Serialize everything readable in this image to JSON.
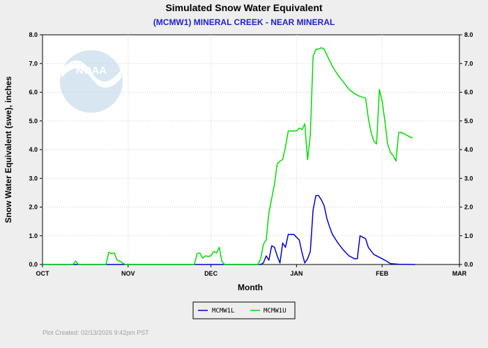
{
  "chart_data": {
    "type": "line",
    "title": "Simulated Snow Water Equivalent",
    "subtitle": "(MCMW1) MINERAL CREEK - NEAR MINERAL",
    "xlabel": "Month",
    "ylabel": "Snow Water Equivalent (swe),  inches",
    "ylim": [
      0,
      8
    ],
    "xlim": [
      "2025-10-01",
      "2026-03-01"
    ],
    "yticks": [
      "0.0",
      "1.0",
      "2.0",
      "3.0",
      "4.0",
      "5.0",
      "6.0",
      "7.0",
      "8.0"
    ],
    "xticks": [
      {
        "date": "2025-10-01",
        "label": "OCT"
      },
      {
        "date": "2025-11-01",
        "label": "NOV"
      },
      {
        "date": "2025-12-01",
        "label": "DEC"
      },
      {
        "date": "2026-01-01",
        "label": "JAN"
      },
      {
        "date": "2026-02-01",
        "label": "FEB"
      },
      {
        "date": "2026-03-01",
        "label": "MAR"
      }
    ],
    "grid": true,
    "legend_position": "bottom-center",
    "series": [
      {
        "name": "MCMW1L",
        "color": "#0000cc",
        "points": [
          [
            "2025-10-01",
            0.0
          ],
          [
            "2025-12-19",
            0.0
          ],
          [
            "2025-12-20",
            0.05
          ],
          [
            "2025-12-21",
            0.3
          ],
          [
            "2025-12-22",
            0.15
          ],
          [
            "2025-12-23",
            0.65
          ],
          [
            "2025-12-24",
            0.6
          ],
          [
            "2025-12-25",
            0.3
          ],
          [
            "2025-12-26",
            0.05
          ],
          [
            "2025-12-27",
            0.75
          ],
          [
            "2025-12-28",
            0.6
          ],
          [
            "2025-12-29",
            1.05
          ],
          [
            "2025-12-30",
            1.05
          ],
          [
            "2025-12-31",
            1.05
          ],
          [
            "2026-01-01",
            0.95
          ],
          [
            "2026-01-02",
            0.85
          ],
          [
            "2026-01-03",
            0.4
          ],
          [
            "2026-01-04",
            0.05
          ],
          [
            "2026-01-05",
            0.2
          ],
          [
            "2026-01-06",
            0.45
          ],
          [
            "2026-01-07",
            1.9
          ],
          [
            "2026-01-08",
            2.4
          ],
          [
            "2026-01-09",
            2.4
          ],
          [
            "2026-01-10",
            2.25
          ],
          [
            "2026-01-11",
            2.05
          ],
          [
            "2026-01-12",
            1.6
          ],
          [
            "2026-01-13",
            1.3
          ],
          [
            "2026-01-14",
            1.05
          ],
          [
            "2026-01-16",
            0.75
          ],
          [
            "2026-01-18",
            0.5
          ],
          [
            "2026-01-20",
            0.3
          ],
          [
            "2026-01-22",
            0.2
          ],
          [
            "2026-01-23",
            0.2
          ],
          [
            "2026-01-24",
            1.0
          ],
          [
            "2026-01-26",
            0.9
          ],
          [
            "2026-01-27",
            0.6
          ],
          [
            "2026-01-29",
            0.35
          ],
          [
            "2026-01-31",
            0.25
          ],
          [
            "2026-02-02",
            0.15
          ],
          [
            "2026-02-04",
            0.03
          ],
          [
            "2026-02-07",
            0.01
          ],
          [
            "2026-02-13",
            0.0
          ]
        ]
      },
      {
        "name": "MCMW1U",
        "color": "#00dd00",
        "points": [
          [
            "2025-10-01",
            0.0
          ],
          [
            "2025-10-12",
            0.0
          ],
          [
            "2025-10-13",
            0.12
          ],
          [
            "2025-10-14",
            0.0
          ],
          [
            "2025-10-24",
            0.0
          ],
          [
            "2025-10-25",
            0.42
          ],
          [
            "2025-10-26",
            0.38
          ],
          [
            "2025-10-27",
            0.4
          ],
          [
            "2025-10-28",
            0.15
          ],
          [
            "2025-10-29",
            0.12
          ],
          [
            "2025-10-30",
            0.05
          ],
          [
            "2025-10-31",
            0.0
          ],
          [
            "2025-11-25",
            0.0
          ],
          [
            "2025-11-26",
            0.38
          ],
          [
            "2025-11-27",
            0.4
          ],
          [
            "2025-11-28",
            0.22
          ],
          [
            "2025-11-29",
            0.3
          ],
          [
            "2025-11-30",
            0.28
          ],
          [
            "2025-12-01",
            0.3
          ],
          [
            "2025-12-02",
            0.45
          ],
          [
            "2025-12-03",
            0.4
          ],
          [
            "2025-12-04",
            0.6
          ],
          [
            "2025-12-05",
            0.1
          ],
          [
            "2025-12-06",
            0.0
          ],
          [
            "2025-12-18",
            0.0
          ],
          [
            "2025-12-19",
            0.2
          ],
          [
            "2025-12-20",
            0.7
          ],
          [
            "2025-12-21",
            0.85
          ],
          [
            "2025-12-22",
            1.8
          ],
          [
            "2025-12-23",
            2.3
          ],
          [
            "2025-12-24",
            2.8
          ],
          [
            "2025-12-25",
            3.5
          ],
          [
            "2025-12-26",
            3.6
          ],
          [
            "2025-12-27",
            3.65
          ],
          [
            "2025-12-28",
            4.1
          ],
          [
            "2025-12-29",
            4.65
          ],
          [
            "2025-12-30",
            4.65
          ],
          [
            "2026-01-01",
            4.65
          ],
          [
            "2026-01-02",
            4.75
          ],
          [
            "2026-01-03",
            4.7
          ],
          [
            "2026-01-04",
            4.9
          ],
          [
            "2026-01-05",
            3.65
          ],
          [
            "2026-01-06",
            4.5
          ],
          [
            "2026-01-07",
            7.25
          ],
          [
            "2026-01-08",
            7.5
          ],
          [
            "2026-01-09",
            7.5
          ],
          [
            "2026-01-10",
            7.55
          ],
          [
            "2026-01-11",
            7.5
          ],
          [
            "2026-01-12",
            7.3
          ],
          [
            "2026-01-14",
            6.9
          ],
          [
            "2026-01-16",
            6.6
          ],
          [
            "2026-01-18",
            6.35
          ],
          [
            "2026-01-20",
            6.1
          ],
          [
            "2026-01-22",
            5.95
          ],
          [
            "2026-01-24",
            5.85
          ],
          [
            "2026-01-26",
            5.8
          ],
          [
            "2026-01-27",
            5.1
          ],
          [
            "2026-01-28",
            4.6
          ],
          [
            "2026-01-29",
            4.3
          ],
          [
            "2026-01-30",
            4.2
          ],
          [
            "2026-01-31",
            6.1
          ],
          [
            "2026-02-01",
            5.7
          ],
          [
            "2026-02-02",
            5.0
          ],
          [
            "2026-02-03",
            4.2
          ],
          [
            "2026-02-04",
            3.9
          ],
          [
            "2026-02-05",
            3.8
          ],
          [
            "2026-02-06",
            3.6
          ],
          [
            "2026-02-07",
            4.6
          ],
          [
            "2026-02-08",
            4.6
          ],
          [
            "2026-02-09",
            4.55
          ],
          [
            "2026-02-10",
            4.5
          ],
          [
            "2026-02-11",
            4.45
          ],
          [
            "2026-02-12",
            4.4
          ]
        ]
      }
    ]
  },
  "logo": {
    "text": "NOAA",
    "circle_color": "#d8e6f2",
    "band_color": "#ffffff"
  },
  "footer": {
    "created": "Plot Created: 02/13/2026 9:42pm PST"
  }
}
